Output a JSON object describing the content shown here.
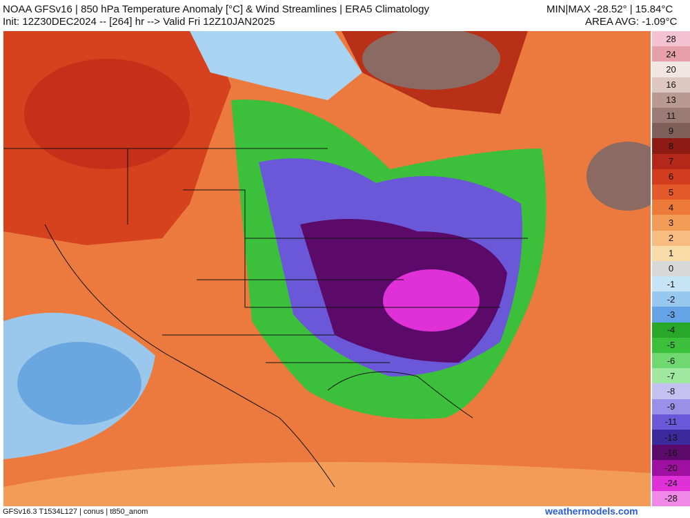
{
  "header": {
    "title": "NOAA GFSv16 | 850 hPa Temperature Anomaly [°C] & Wind Streamlines | ERA5 Climatology",
    "init": "Init: 12Z30DEC2024 -- [264] hr --> Valid Fri 12Z10JAN2025",
    "minmax": "MIN|MAX -28.52° | 15.84°C",
    "area_avg": "AREA AVG: -1.09°C"
  },
  "colorbar": {
    "labels": [
      "28",
      "24",
      "20",
      "16",
      "13",
      "11",
      "9",
      "8",
      "7",
      "6",
      "5",
      "4",
      "3",
      "2",
      "1",
      "0",
      "-1",
      "-2",
      "-3",
      "-4",
      "-5",
      "-6",
      "-7",
      "-8",
      "-9",
      "-11",
      "-13",
      "-16",
      "-20",
      "-24",
      "-28"
    ],
    "colors": [
      "#f4c2d2",
      "#e8a0a8",
      "#f2e6e2",
      "#dcc8c0",
      "#b89a90",
      "#9a7c74",
      "#7e6058",
      "#8e1a14",
      "#b4281a",
      "#d23c1e",
      "#e4582a",
      "#ee7a3a",
      "#f29c58",
      "#f6bc80",
      "#f8dca8",
      "#d8d8d8",
      "#c6e4f6",
      "#96c8f0",
      "#64a4e6",
      "#28a828",
      "#3cc03c",
      "#70d870",
      "#a0e8a0",
      "#c4c0f0",
      "#9a90e8",
      "#6a58d8",
      "#3c2a9c",
      "#5c0a6a",
      "#a010a0",
      "#e030d8",
      "#f088e8"
    ]
  },
  "footer": {
    "model": "GFSv16.3 T1534L127 | conus | t850_anom",
    "site": "weathermodels.com"
  }
}
